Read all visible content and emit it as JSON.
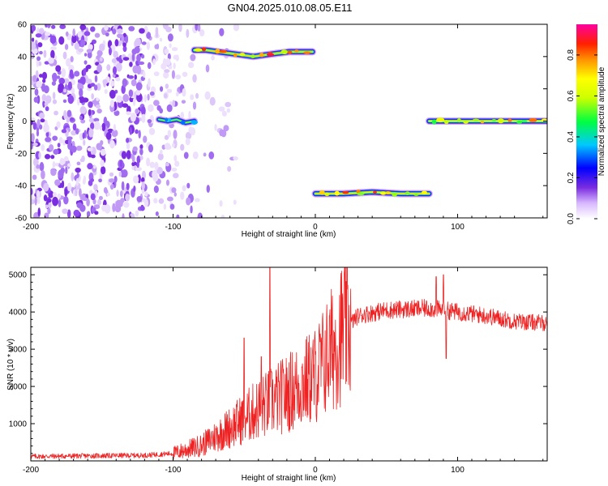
{
  "page": {
    "title": "GN04.2025.010.08.05.E11"
  },
  "colors": {
    "snr_line": "#ee2222",
    "noise_purple": "#7a2de0"
  },
  "chart_data": [
    {
      "type": "heatmap",
      "xlabel": "Height of straight line (km)",
      "ylabel": "Frequency (Hz)",
      "xlim": [
        -200,
        163
      ],
      "ylim": [
        -60,
        60
      ],
      "xticks": [
        -200,
        -100,
        0,
        100
      ],
      "yticks": [
        -60,
        -40,
        -20,
        0,
        20,
        40,
        60
      ],
      "colorbar": {
        "label": "Normalized spectral amplitude",
        "range": [
          0.0,
          0.95
        ],
        "ticks": [
          0.0,
          0.2,
          0.4,
          0.6,
          0.8
        ]
      },
      "tracks": [
        {
          "x": [
            -110,
            -85
          ],
          "freq": [
            1,
            0,
            1,
            -1,
            0
          ],
          "peak": 0.5
        },
        {
          "x": [
            -85,
            -2
          ],
          "freq": [
            44,
            44,
            43,
            42,
            41,
            40,
            41,
            42,
            43,
            43,
            43
          ],
          "peak": 0.95
        },
        {
          "x": [
            0,
            80
          ],
          "freq": [
            -45,
            -45,
            -44,
            -45,
            -45
          ],
          "peak": 0.9
        },
        {
          "x": [
            80,
            163
          ],
          "freq": [
            0,
            0,
            0,
            0,
            0
          ],
          "peak": 0.85
        }
      ]
    },
    {
      "type": "line",
      "xlabel": "Height of straight line (km)",
      "ylabel": "SNR (10 * v/v)",
      "xlim": [
        -200,
        163
      ],
      "ylim": [
        0,
        5200
      ],
      "xticks": [
        -200,
        -100,
        0,
        100
      ],
      "yticks": [
        1000,
        2000,
        3000,
        4000,
        5000
      ],
      "envelope_x": [
        -200,
        -120,
        -100,
        -80,
        -60,
        -40,
        -20,
        0,
        10,
        20,
        30,
        50,
        80,
        100,
        120,
        140,
        163
      ],
      "envelope_y": [
        120,
        150,
        200,
        420,
        900,
        1400,
        1800,
        2300,
        2900,
        3500,
        3900,
        4050,
        4100,
        4000,
        3900,
        3750,
        3700
      ],
      "spikes": [
        {
          "x": -32,
          "y": 5200
        },
        {
          "x": -50,
          "y": 3300
        },
        {
          "x": -38,
          "y": 2800
        },
        {
          "x": 10,
          "y": 3900
        },
        {
          "x": 85,
          "y": 4950
        },
        {
          "x": 90,
          "y": 5000
        },
        {
          "x": 92,
          "y": 2750
        }
      ]
    }
  ]
}
